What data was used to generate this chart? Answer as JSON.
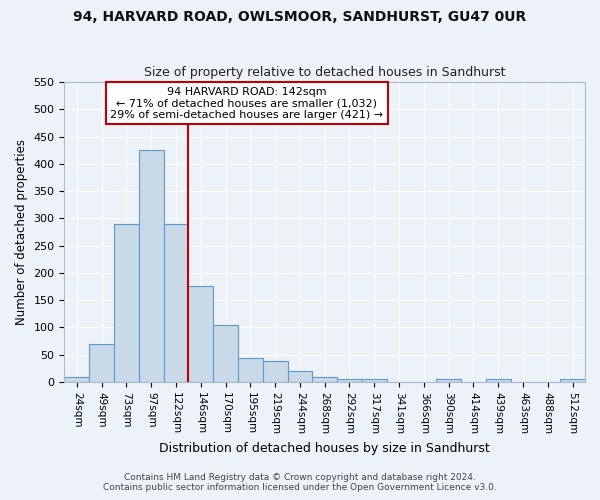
{
  "title": "94, HARVARD ROAD, OWLSMOOR, SANDHURST, GU47 0UR",
  "subtitle": "Size of property relative to detached houses in Sandhurst",
  "xlabel": "Distribution of detached houses by size in Sandhurst",
  "ylabel": "Number of detached properties",
  "categories": [
    "24sqm",
    "49sqm",
    "73sqm",
    "97sqm",
    "122sqm",
    "146sqm",
    "170sqm",
    "195sqm",
    "219sqm",
    "244sqm",
    "268sqm",
    "292sqm",
    "317sqm",
    "341sqm",
    "366sqm",
    "390sqm",
    "414sqm",
    "439sqm",
    "463sqm",
    "488sqm",
    "512sqm"
  ],
  "values": [
    8,
    70,
    290,
    425,
    290,
    175,
    105,
    43,
    38,
    20,
    9,
    5,
    5,
    0,
    0,
    5,
    0,
    5,
    0,
    0,
    5
  ],
  "bar_color": "#c9d9e8",
  "bar_edge_color": "#5b9bd5",
  "ref_line_index": 5,
  "ref_line_label": "94 HARVARD ROAD: 142sqm",
  "annotation_line1": "← 71% of detached houses are smaller (1,032)",
  "annotation_line2": "29% of semi-detached houses are larger (421) →",
  "annotation_box_color": "#ffffff",
  "annotation_box_edge": "#c00000",
  "ref_line_color": "#c00000",
  "ylim": [
    0,
    550
  ],
  "yticks": [
    0,
    50,
    100,
    150,
    200,
    250,
    300,
    350,
    400,
    450,
    500,
    550
  ],
  "bg_color": "#edf2f9",
  "grid_color": "#ffffff",
  "footer1": "Contains HM Land Registry data © Crown copyright and database right 2024.",
  "footer2": "Contains public sector information licensed under the Open Government Licence v3.0."
}
